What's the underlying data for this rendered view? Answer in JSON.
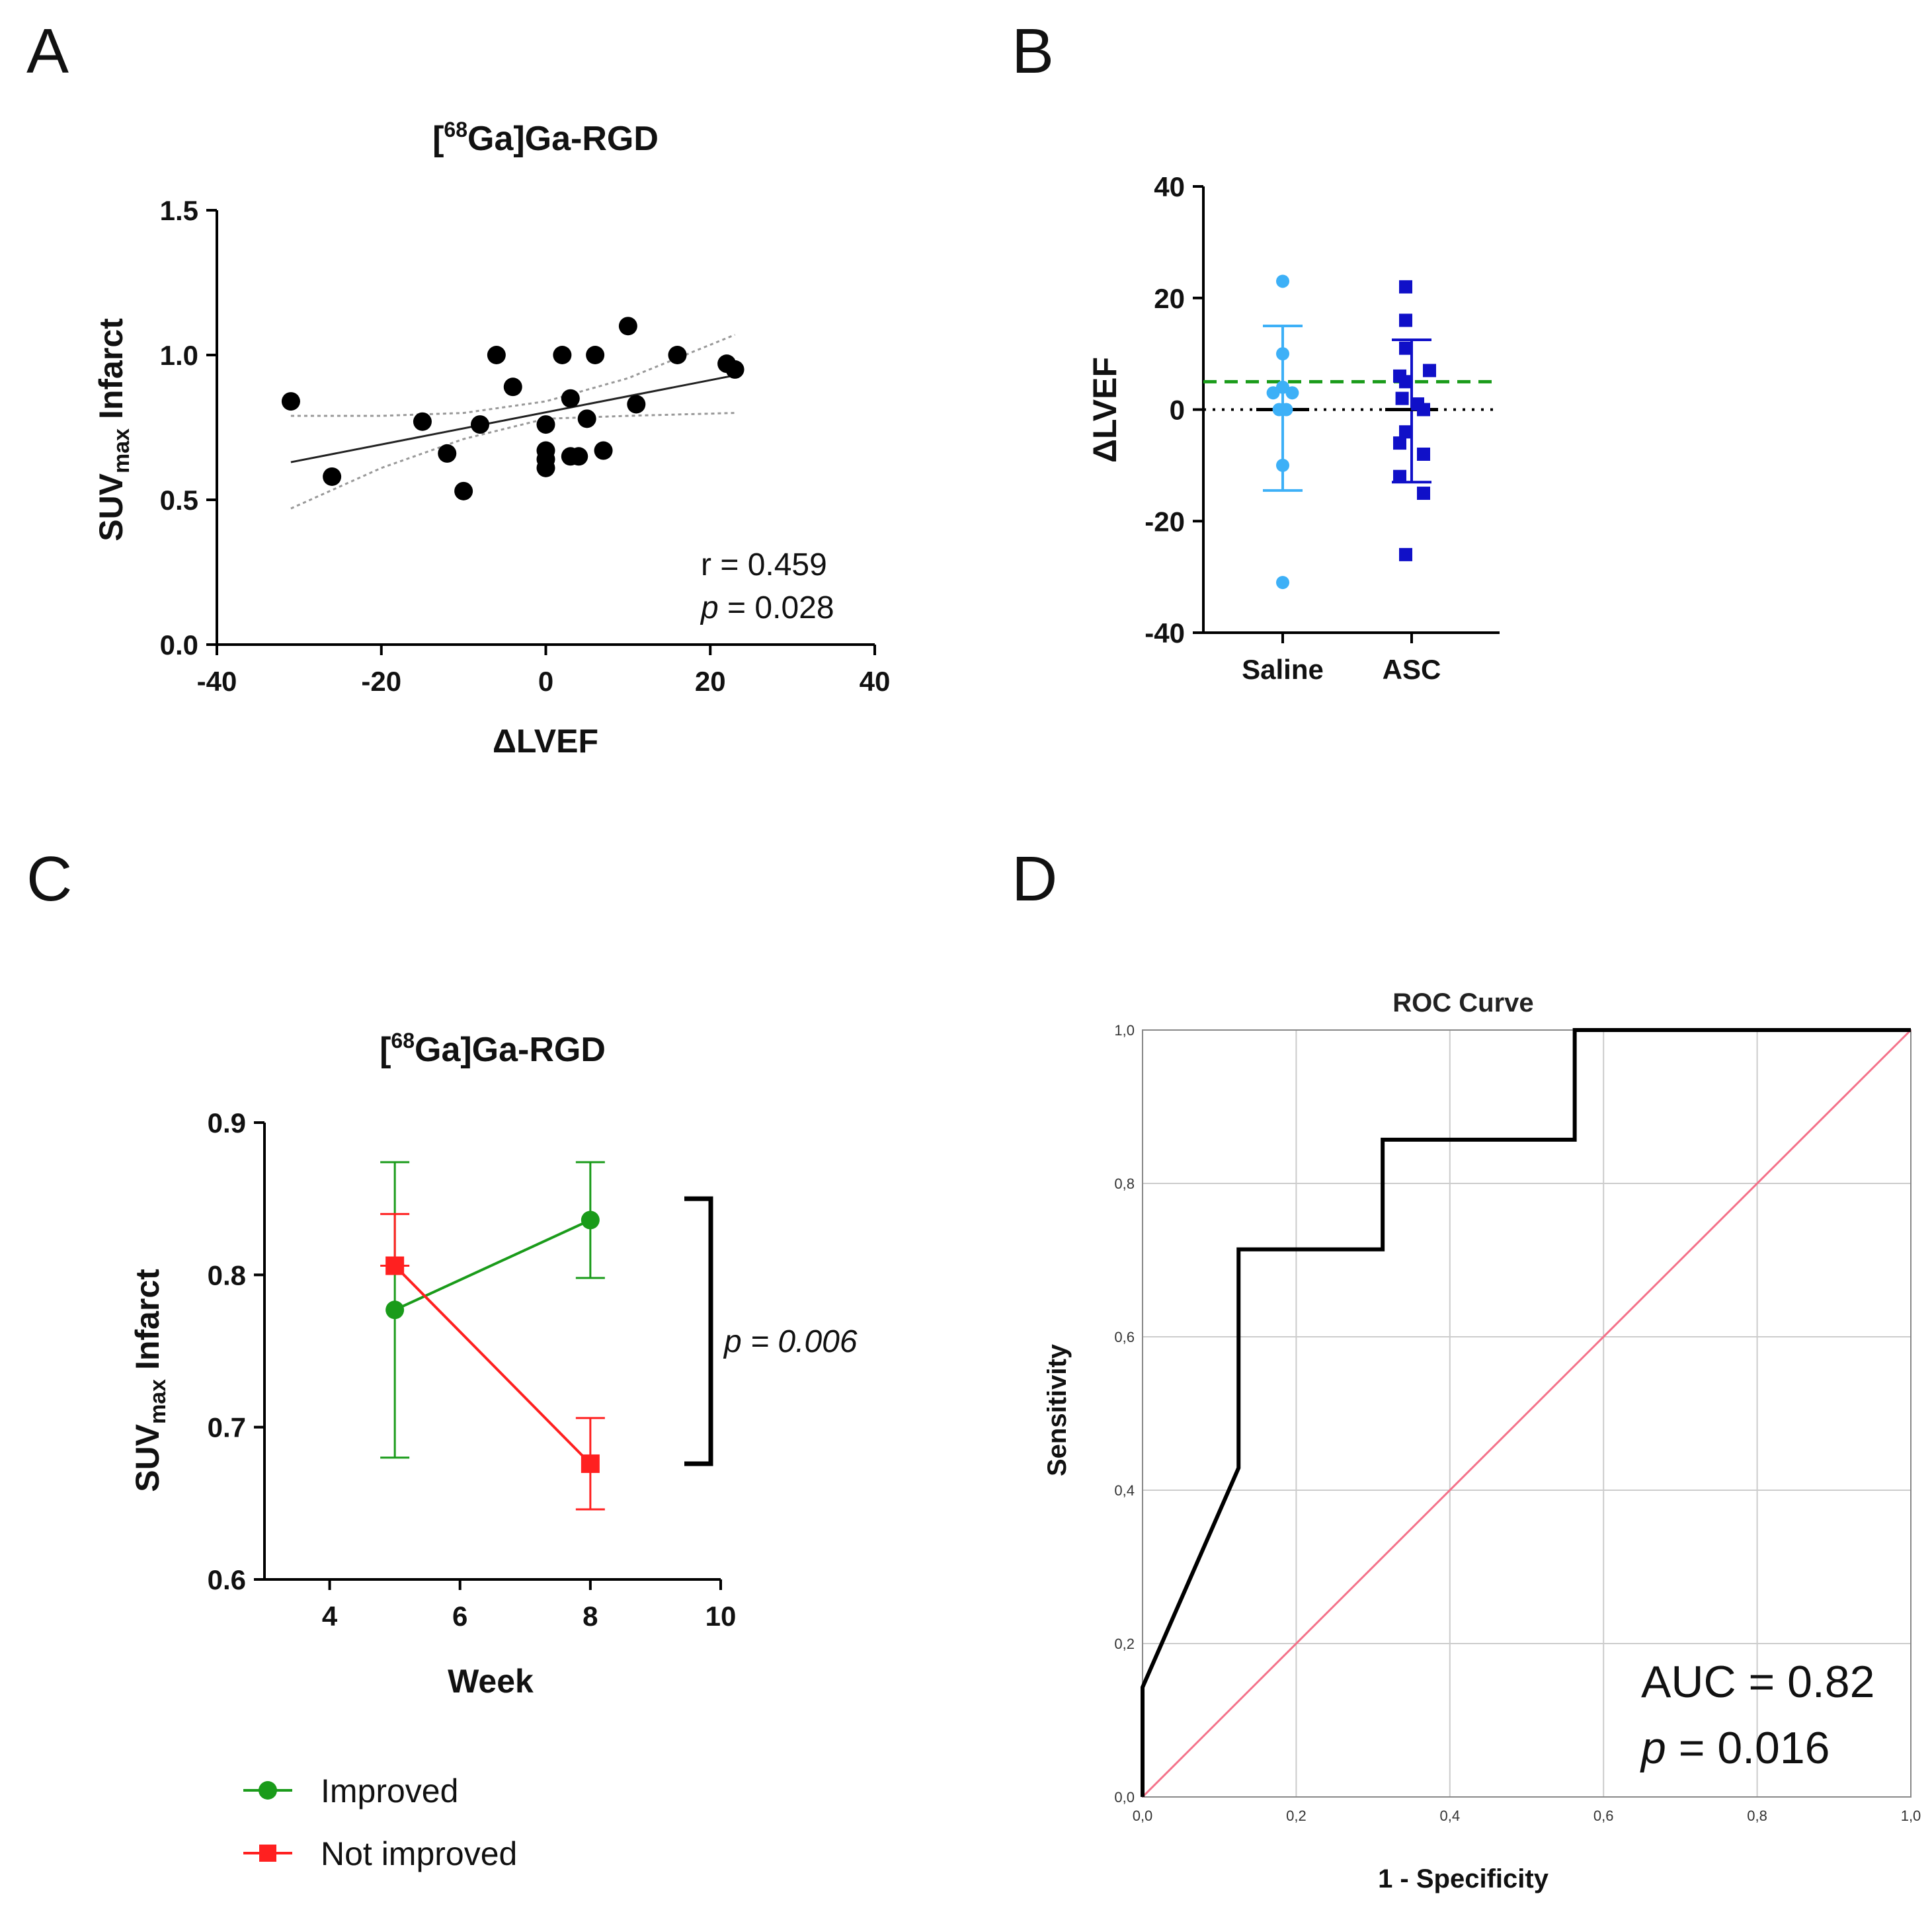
{
  "panels": {
    "A": {
      "label": "A"
    },
    "B": {
      "label": "B"
    },
    "C": {
      "label": "C"
    },
    "D": {
      "label": "D"
    }
  },
  "colors": {
    "black": "#000000",
    "saline": "#3db0f7",
    "asc": "#1010c8",
    "threshold_green": "#1a9b1a",
    "improved": "#1a9b1a",
    "not_improved": "#ff2020",
    "roc_curve": "#000000",
    "roc_reference": "#f4728a",
    "roc_grid": "#cccccc"
  },
  "chart_data": [
    {
      "id": "A",
      "type": "scatter",
      "title_prefix": "[",
      "title_superscript": "68",
      "title_suffix": "Ga]Ga-RGD",
      "xlabel": "ΔLVEF",
      "ylabel_main": "SUV",
      "ylabel_sub": "max",
      "ylabel_tail": " Infarct",
      "xlim": [
        -40,
        40
      ],
      "ylim": [
        0.0,
        1.5
      ],
      "xticks": [
        "-40",
        "-20",
        "0",
        "20",
        "40"
      ],
      "xtick_values": [
        -40,
        -20,
        0,
        20,
        40
      ],
      "yticks": [
        "0.0",
        "0.5",
        "1.0",
        "1.5"
      ],
      "ytick_values": [
        0.0,
        0.5,
        1.0,
        1.5
      ],
      "x": [
        -31,
        -26,
        -15,
        -12,
        -10,
        -8,
        -6,
        -4,
        0,
        0,
        0,
        0,
        2,
        3,
        3,
        4,
        5,
        6,
        7,
        10,
        11,
        16,
        22,
        23
      ],
      "y": [
        0.84,
        0.58,
        0.77,
        0.66,
        0.53,
        0.76,
        1.0,
        0.89,
        0.76,
        0.67,
        0.61,
        0.64,
        1.0,
        0.85,
        0.65,
        0.65,
        0.78,
        1.0,
        0.67,
        1.1,
        0.83,
        1.0,
        0.97,
        0.95
      ],
      "regression": {
        "x": [
          -31,
          23
        ],
        "y": [
          0.63,
          0.93
        ]
      },
      "ci_upper": {
        "x": [
          -31,
          -20,
          -10,
          0,
          10,
          23
        ],
        "y": [
          0.79,
          0.79,
          0.8,
          0.84,
          0.92,
          1.07
        ]
      },
      "ci_lower": {
        "x": [
          -31,
          -20,
          -10,
          0,
          10,
          23
        ],
        "y": [
          0.47,
          0.61,
          0.71,
          0.78,
          0.79,
          0.8
        ]
      },
      "annotation_r": "r = 0.459",
      "annotation_p_symbol": "p",
      "annotation_p_value": " = 0.028"
    },
    {
      "id": "B",
      "type": "scatter",
      "ylabel": "ΔLVEF",
      "categories": [
        "Saline",
        "ASC"
      ],
      "ylim": [
        -40,
        40
      ],
      "yticks": [
        "-40",
        "-20",
        "0",
        "20",
        "40"
      ],
      "ytick_values": [
        -40,
        -20,
        0,
        20,
        40
      ],
      "threshold_line": 5,
      "zero_line": 0,
      "series": [
        {
          "name": "Saline",
          "points": [
            [
              0.0,
              23
            ],
            [
              0.0,
              10
            ],
            [
              -0.08,
              3
            ],
            [
              0.0,
              4
            ],
            [
              0.08,
              3
            ],
            [
              -0.03,
              0
            ],
            [
              0.03,
              0
            ],
            [
              0.0,
              -10
            ],
            [
              0.0,
              -31
            ]
          ],
          "mean": 0,
          "sd_upper": 15,
          "sd_lower": -14.5
        },
        {
          "name": "ASC",
          "points": [
            [
              -0.05,
              22
            ],
            [
              -0.05,
              16
            ],
            [
              -0.05,
              11
            ],
            [
              -0.1,
              6
            ],
            [
              0.15,
              7
            ],
            [
              -0.05,
              5
            ],
            [
              -0.08,
              2
            ],
            [
              0.1,
              0
            ],
            [
              0.05,
              1
            ],
            [
              -0.05,
              -4
            ],
            [
              -0.1,
              -6
            ],
            [
              0.1,
              -8
            ],
            [
              -0.1,
              -12
            ],
            [
              0.1,
              -15
            ],
            [
              -0.05,
              -26
            ]
          ],
          "mean": 0,
          "sd_upper": 12.5,
          "sd_lower": -13
        }
      ]
    },
    {
      "id": "C",
      "type": "line",
      "title_prefix": "[",
      "title_superscript": "68",
      "title_suffix": "Ga]Ga-RGD",
      "xlabel": "Week",
      "ylabel_main": "SUV",
      "ylabel_sub": "max",
      "ylabel_tail": " Infarct",
      "xlim": [
        3,
        10
      ],
      "ylim": [
        0.6,
        0.9
      ],
      "xticks": [
        "4",
        "6",
        "8",
        "10"
      ],
      "xtick_values": [
        4,
        6,
        8,
        10
      ],
      "yticks": [
        "0.6",
        "0.7",
        "0.8",
        "0.9"
      ],
      "ytick_values": [
        0.6,
        0.7,
        0.8,
        0.9
      ],
      "series": [
        {
          "name": "Improved",
          "x": [
            5,
            8
          ],
          "y": [
            0.777,
            0.836
          ],
          "err_upper": [
            0.874,
            0.874
          ],
          "err_lower": [
            0.68,
            0.798
          ],
          "marker": "circle"
        },
        {
          "name": "Not improved",
          "x": [
            5,
            8
          ],
          "y": [
            0.806,
            0.676
          ],
          "err_upper": [
            0.84,
            0.706
          ],
          "err_lower": [
            0.806,
            0.646
          ],
          "marker": "square"
        }
      ],
      "bracket_y": [
        0.676,
        0.85
      ],
      "annotation_p_symbol": "p",
      "annotation_p_value": " = 0.006",
      "legend": [
        "Improved",
        "Not improved"
      ]
    },
    {
      "id": "D",
      "type": "line",
      "title": "ROC Curve",
      "xlabel": "1 - Specificity",
      "ylabel": "Sensitivity",
      "xlim": [
        0.0,
        1.0
      ],
      "ylim": [
        0.0,
        1.0
      ],
      "xticks": [
        "0,0",
        "0,2",
        "0,4",
        "0,6",
        "0,8",
        "1,0"
      ],
      "xtick_values": [
        0.0,
        0.2,
        0.4,
        0.6,
        0.8,
        1.0
      ],
      "yticks": [
        "0,0",
        "0,2",
        "0,4",
        "0,6",
        "0,8",
        "1,0"
      ],
      "ytick_values": [
        0.0,
        0.2,
        0.4,
        0.6,
        0.8,
        1.0
      ],
      "grid": true,
      "roc_curve": {
        "x": [
          0.0,
          0.0,
          0.125,
          0.125,
          0.3125,
          0.3125,
          0.5625,
          0.5625,
          1.0
        ],
        "y": [
          0.0,
          0.143,
          0.429,
          0.714,
          0.714,
          0.857,
          0.857,
          1.0,
          1.0
        ]
      },
      "reference_line": {
        "x": [
          0.0,
          1.0
        ],
        "y": [
          0.0,
          1.0
        ]
      },
      "annotation_auc": "AUC = 0.82",
      "annotation_p_symbol": "p",
      "annotation_p_value": " = 0.016"
    }
  ]
}
